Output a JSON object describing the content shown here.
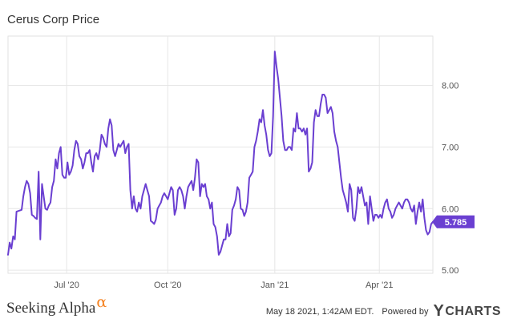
{
  "chart_data": {
    "type": "line",
    "title": "Cerus Corp Price",
    "xlabel": "",
    "ylabel": "",
    "x_ticks": [
      "Jul '20",
      "Oct '20",
      "Jan '21",
      "Apr '21"
    ],
    "y_ticks": [
      "5.00",
      "6.00",
      "7.00",
      "8.00"
    ],
    "ylim": [
      4.95,
      8.8
    ],
    "grid": true,
    "line_color": "#6a3fd1",
    "last_value_label": "5.785",
    "series": [
      {
        "values": [
          5.25,
          5.45,
          5.35,
          5.55,
          5.5,
          5.95,
          5.96,
          5.97,
          5.98,
          6.2,
          6.35,
          6.45,
          6.4,
          6.25,
          5.9,
          5.88,
          5.85,
          5.83,
          6.6,
          5.5,
          6.4,
          6.2,
          6.0,
          5.98,
          6.05,
          6.1,
          6.35,
          6.45,
          6.8,
          6.65,
          6.9,
          7.0,
          6.55,
          6.5,
          6.5,
          6.75,
          6.55,
          6.6,
          6.7,
          6.95,
          7.1,
          7.05,
          6.85,
          6.8,
          6.65,
          6.75,
          6.9,
          6.9,
          6.95,
          6.75,
          6.6,
          6.85,
          6.9,
          6.8,
          6.95,
          7.2,
          7.15,
          7.05,
          7.0,
          7.3,
          7.45,
          7.35,
          6.95,
          6.85,
          6.95,
          7.05,
          7.0,
          7.05,
          7.1,
          6.9,
          7.0,
          7.05,
          6.3,
          6.0,
          6.2,
          6.0,
          5.95,
          6.1,
          6.0,
          6.2,
          6.3,
          6.4,
          6.3,
          6.2,
          5.8,
          5.78,
          5.75,
          5.82,
          6.0,
          6.05,
          6.1,
          6.2,
          6.25,
          6.2,
          6.15,
          6.25,
          6.35,
          6.3,
          5.9,
          6.0,
          6.3,
          6.35,
          6.3,
          6.2,
          6.0,
          6.2,
          6.35,
          6.4,
          6.45,
          6.3,
          6.5,
          6.8,
          6.75,
          6.2,
          6.4,
          6.35,
          6.4,
          6.2,
          6.15,
          6.0,
          6.1,
          5.75,
          5.7,
          5.55,
          5.25,
          5.3,
          5.4,
          5.5,
          5.5,
          5.75,
          5.55,
          5.6,
          5.98,
          6.05,
          6.15,
          6.35,
          6.3,
          6.0,
          5.98,
          5.88,
          5.95,
          6.1,
          6.5,
          6.55,
          6.6,
          7.0,
          7.1,
          7.25,
          7.45,
          7.4,
          7.6,
          7.35,
          7.2,
          6.95,
          6.85,
          6.9,
          7.5,
          8.55,
          8.3,
          8.1,
          7.8,
          7.5,
          7.1,
          6.95,
          6.95,
          7.0,
          7.0,
          6.95,
          7.3,
          7.25,
          7.55,
          7.3,
          7.3,
          7.25,
          7.3,
          7.2,
          7.3,
          6.6,
          6.65,
          6.75,
          7.4,
          7.6,
          7.5,
          7.5,
          7.7,
          7.85,
          7.85,
          7.8,
          7.55,
          7.6,
          7.65,
          7.55,
          7.25,
          7.1,
          7.0,
          6.75,
          6.5,
          6.3,
          6.2,
          6.1,
          5.95,
          6.4,
          6.3,
          5.85,
          5.8,
          6.0,
          6.35,
          6.25,
          6.35,
          6.2,
          6.05,
          6.1,
          5.75,
          6.2,
          6.0,
          5.8,
          5.9,
          5.9,
          5.85,
          5.9,
          5.85,
          6.0,
          6.1,
          6.15,
          6.0,
          5.95,
          5.85,
          5.9,
          6.0,
          6.05,
          6.1,
          6.05,
          6.0,
          6.1,
          6.15,
          6.15,
          6.1,
          6.0,
          5.95,
          6.05,
          5.75,
          5.95,
          6.1,
          5.95,
          6.15,
          5.85,
          5.65,
          5.58,
          5.62,
          5.75,
          5.785
        ]
      }
    ]
  },
  "footer": {
    "brand": "Seeking Alpha",
    "brand_glyph": "α",
    "timestamp": "May 18 2021, 1:42AM EDT.",
    "powered_by": "Powered by",
    "provider_y": "Y",
    "provider_rest": "CHARTS"
  }
}
